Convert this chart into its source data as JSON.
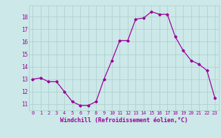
{
  "x": [
    0,
    1,
    2,
    3,
    4,
    5,
    6,
    7,
    8,
    9,
    10,
    11,
    12,
    13,
    14,
    15,
    16,
    17,
    18,
    19,
    20,
    21,
    22,
    23
  ],
  "y": [
    13.0,
    13.1,
    12.8,
    12.8,
    12.0,
    11.2,
    10.9,
    10.9,
    11.2,
    13.0,
    14.5,
    16.1,
    16.1,
    17.8,
    17.9,
    18.4,
    18.2,
    18.2,
    16.4,
    15.3,
    14.5,
    14.2,
    13.7,
    11.5
  ],
  "line_color": "#990099",
  "marker": "D",
  "markersize": 1.8,
  "linewidth": 0.9,
  "xlabel": "Windchill (Refroidissement éolien,°C)",
  "xlabel_fontsize": 6.0,
  "background_color": "#cce8e8",
  "grid_color": "#aacccc",
  "tick_color": "#990099",
  "label_color": "#990099",
  "ylim": [
    10.5,
    18.9
  ],
  "xlim": [
    -0.5,
    23.5
  ],
  "yticks": [
    11,
    12,
    13,
    14,
    15,
    16,
    17,
    18
  ],
  "xtick_labels": [
    "0",
    "1",
    "2",
    "3",
    "4",
    "5",
    "6",
    "7",
    "8",
    "9",
    "10",
    "11",
    "12",
    "13",
    "14",
    "15",
    "16",
    "17",
    "18",
    "19",
    "20",
    "21",
    "22",
    "23"
  ],
  "tick_fontsize": 5.0,
  "ytick_fontsize": 5.5
}
